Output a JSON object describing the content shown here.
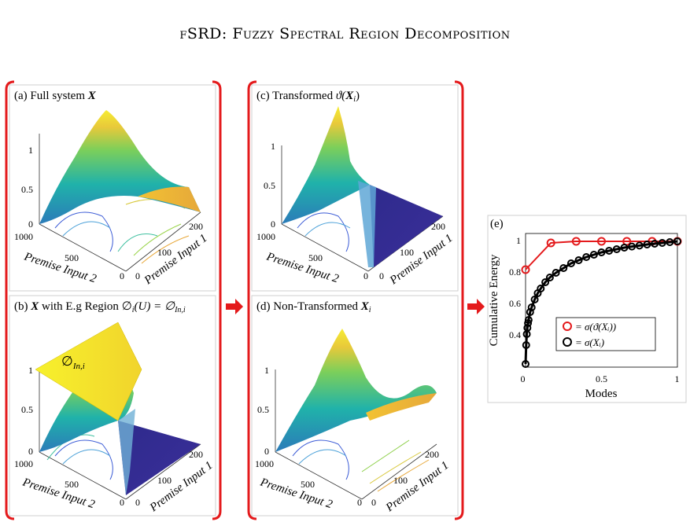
{
  "page": {
    "title": "fSRD: Fuzzy Spectral Region Decomposition"
  },
  "panels": {
    "a": {
      "label": "(a) Full system ",
      "sym": "X"
    },
    "b": {
      "label_pre": "(b) ",
      "sym": "X",
      "label_mid": " with E.g Region ",
      "phi_expr": "∅",
      "sub_i": "i",
      "u_expr": "(U) = ∅",
      "sub_in": "In,i",
      "overlay": "∅",
      "overlay_sub": "In,i"
    },
    "c": {
      "label": "(c) Transformed ",
      "theta": "ϑ(",
      "sym": "X",
      "sub": "i",
      "close": ")"
    },
    "d": {
      "label": "(d) Non-Transformed ",
      "sym": "X",
      "sub": "i"
    }
  },
  "surface_axes": {
    "z_ticks": [
      "0",
      "0.5",
      "1"
    ],
    "y_ticks": [
      "1000",
      "500",
      "0"
    ],
    "x_ticks": [
      "0",
      "100",
      "200"
    ],
    "ylabel": "Premise Input 2",
    "xlabel": "Premise Input 1"
  },
  "chart_data": {
    "type": "line",
    "label": "(e)",
    "xlabel": "Modes",
    "ylabel": "Cumulative Energy",
    "xlim": [
      0,
      1
    ],
    "ylim": [
      0.2,
      1.05
    ],
    "x_ticks": [
      "0",
      "0.5",
      "1"
    ],
    "y_ticks": [
      "0.4",
      "0.6",
      "0.8",
      "1"
    ],
    "grid": false,
    "legend_position": "lower-right",
    "series": [
      {
        "name": "= σ(ϑ(Xᵢ))",
        "color": "#e41a1c",
        "x": [
          0,
          0.1667,
          0.3333,
          0.5,
          0.6667,
          0.8333,
          1.0
        ],
        "y": [
          0.82,
          0.99,
          1.0,
          1.0,
          1.0,
          1.0,
          1.0
        ]
      },
      {
        "name": "= σ(Xᵢ)",
        "color": "#000000",
        "x": [
          0,
          0.004,
          0.008,
          0.012,
          0.016,
          0.02,
          0.03,
          0.04,
          0.06,
          0.08,
          0.1,
          0.13,
          0.16,
          0.2,
          0.25,
          0.3,
          0.35,
          0.4,
          0.45,
          0.5,
          0.55,
          0.6,
          0.65,
          0.7,
          0.75,
          0.8,
          0.85,
          0.9,
          0.95,
          1.0
        ],
        "y": [
          0.22,
          0.34,
          0.41,
          0.45,
          0.48,
          0.5,
          0.55,
          0.58,
          0.63,
          0.67,
          0.7,
          0.74,
          0.77,
          0.8,
          0.83,
          0.86,
          0.88,
          0.9,
          0.915,
          0.93,
          0.94,
          0.95,
          0.96,
          0.967,
          0.973,
          0.98,
          0.985,
          0.99,
          0.995,
          1.0
        ]
      }
    ]
  }
}
